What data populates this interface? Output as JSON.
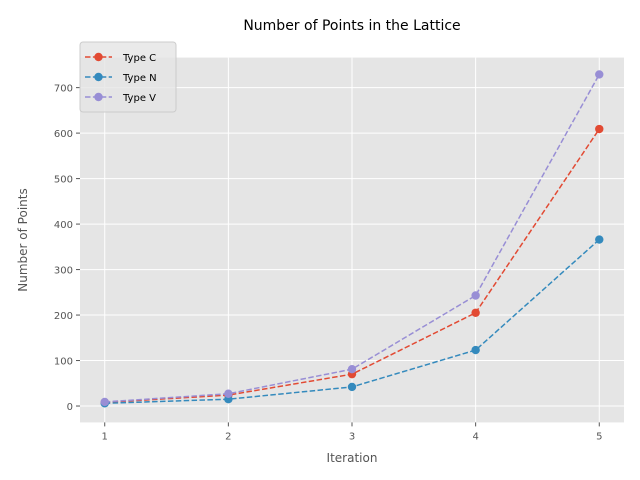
{
  "chart_data": {
    "type": "line",
    "title": "Number of Points in the Lattice",
    "xlabel": "Iteration",
    "ylabel": "Number of Points",
    "x": [
      1,
      2,
      3,
      4,
      5
    ],
    "xlim": [
      0.8,
      5.2
    ],
    "ylim": [
      -36,
      766
    ],
    "yticks": [
      0,
      100,
      200,
      300,
      400,
      500,
      600,
      700
    ],
    "grid": true,
    "legend_position": "top-left",
    "series": [
      {
        "name": "Type C",
        "color": "#E24A33",
        "values": [
          8,
          24,
          70,
          205,
          609
        ]
      },
      {
        "name": "Type N",
        "color": "#348ABD",
        "values": [
          6,
          15,
          42,
          123,
          366
        ]
      },
      {
        "name": "Type V",
        "color": "#988ED5",
        "values": [
          9,
          27,
          81,
          243,
          729
        ]
      }
    ]
  }
}
